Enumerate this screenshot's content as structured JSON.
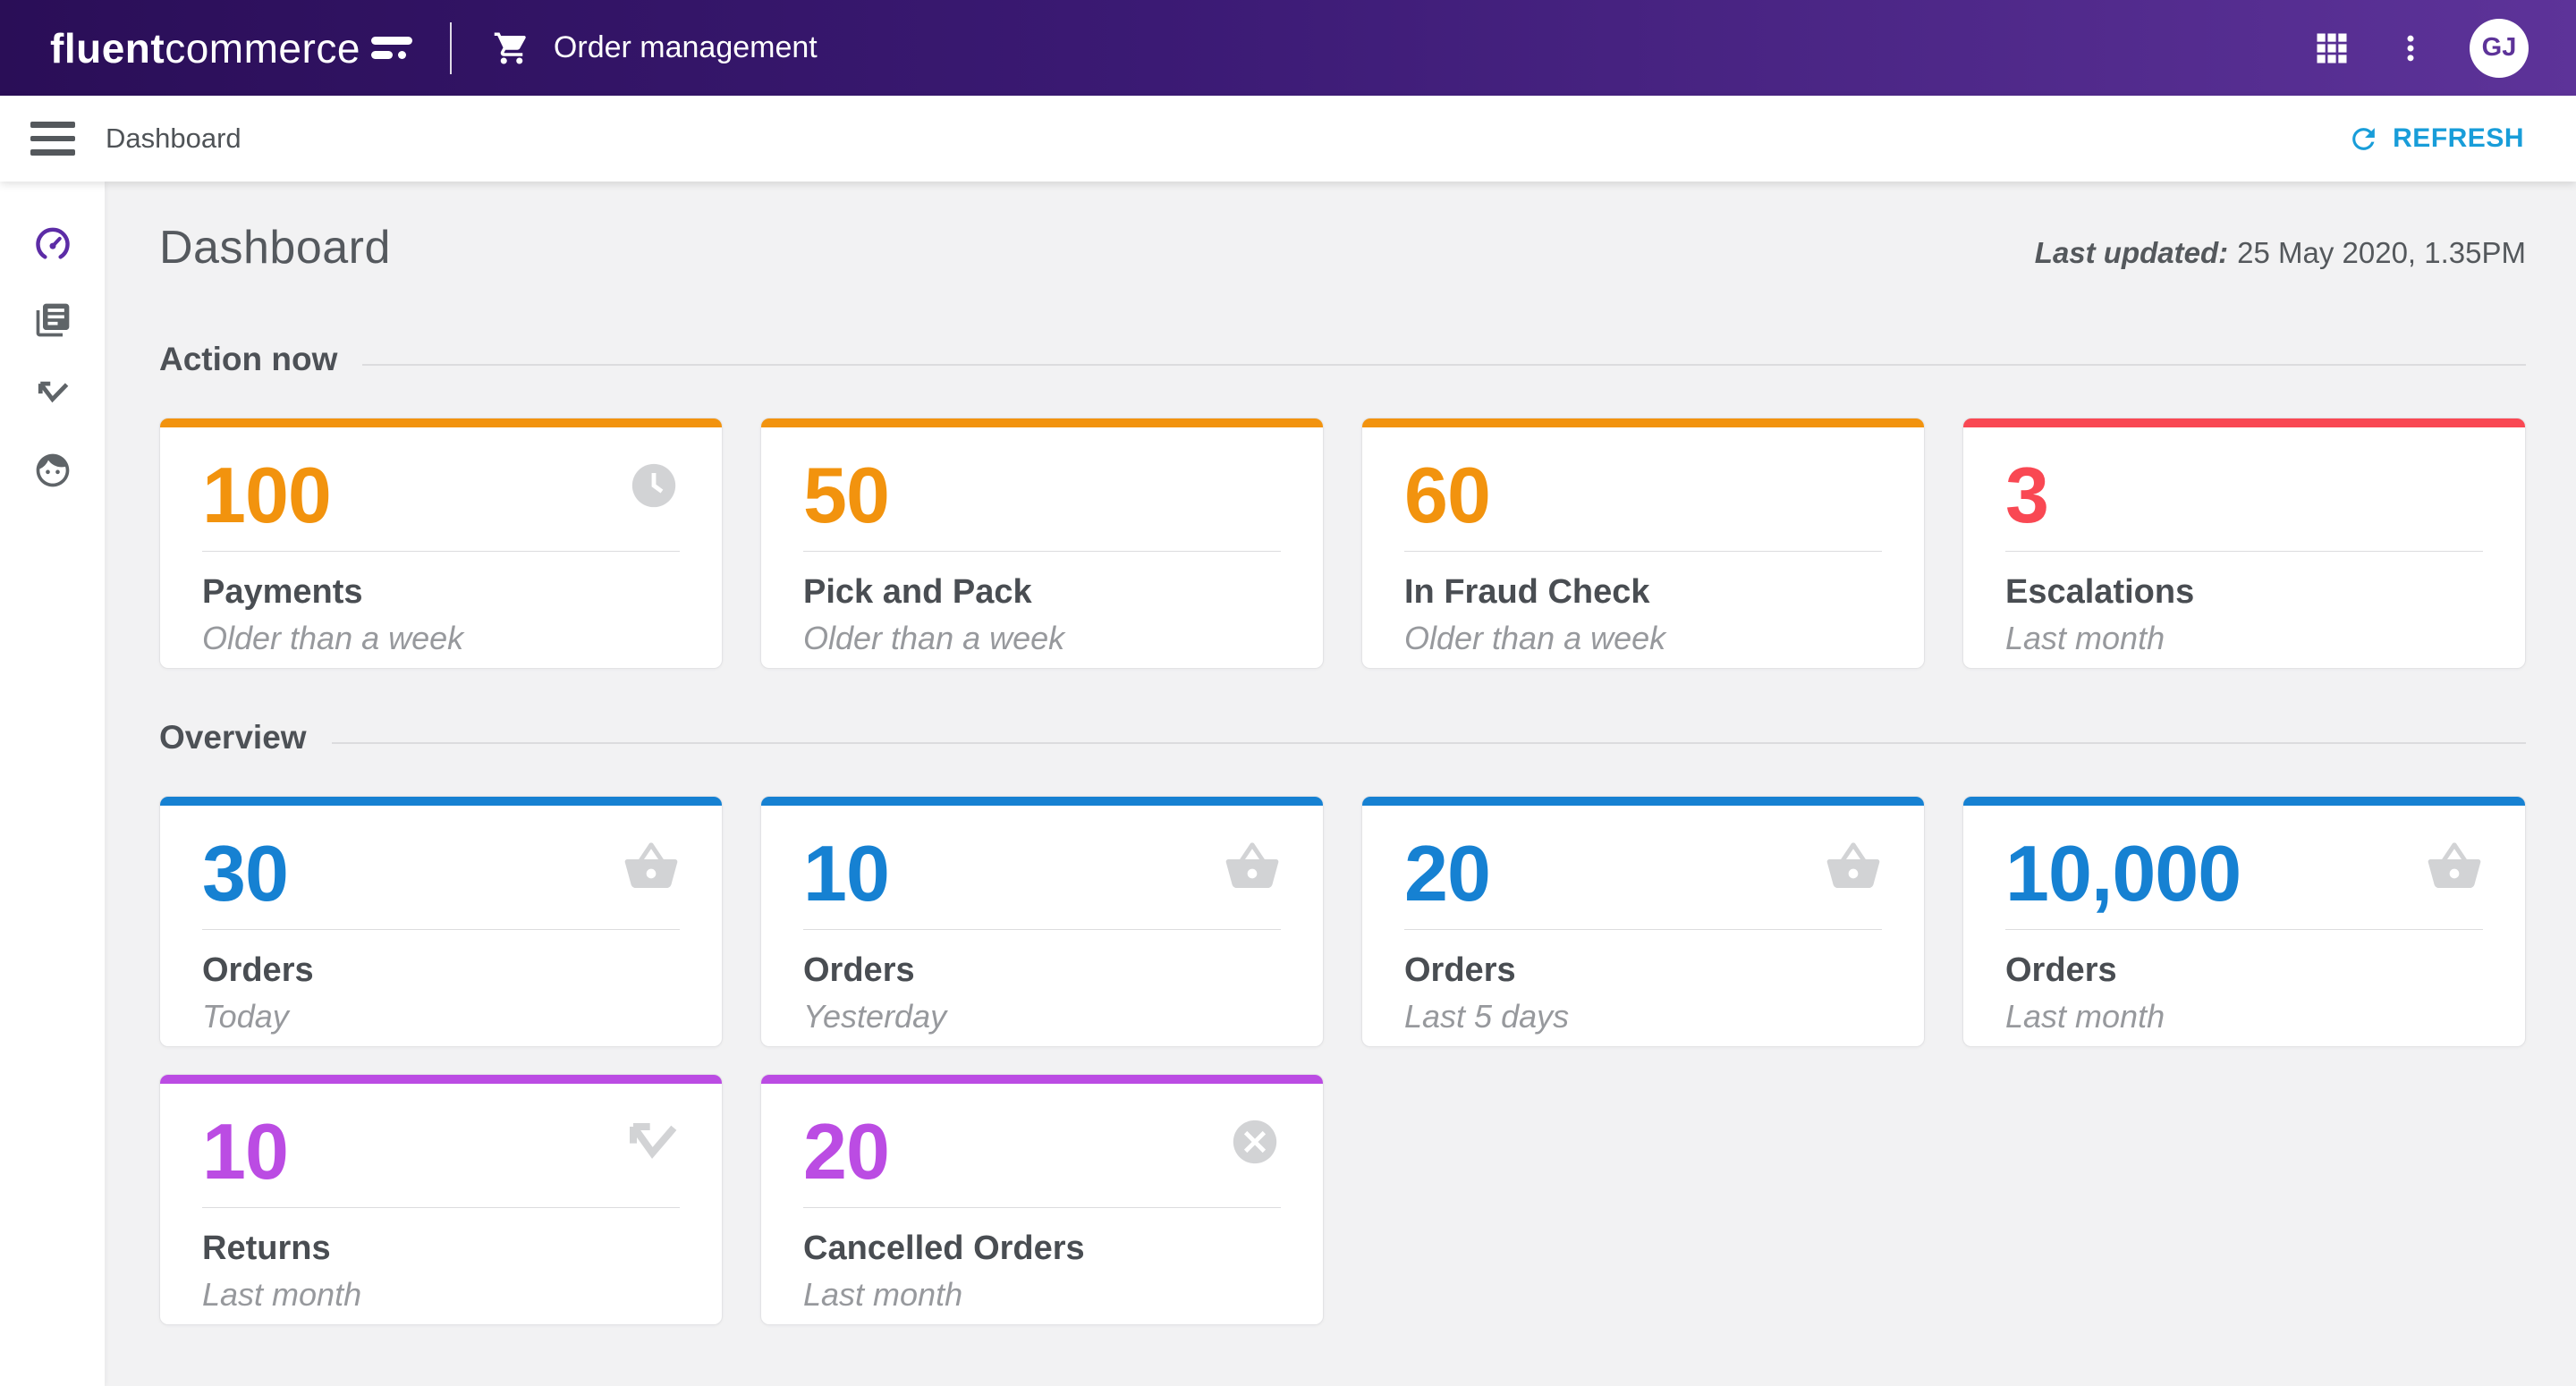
{
  "topbar": {
    "logo_bold": "fluent",
    "logo_light": "commerce",
    "app_label": "Order management",
    "avatar_initials": "GJ"
  },
  "toolbar": {
    "title": "Dashboard",
    "refresh_label": "REFRESH"
  },
  "sidebar": {
    "items": [
      {
        "icon": "dashboard-gauge",
        "active": true
      },
      {
        "icon": "orders-list",
        "active": false
      },
      {
        "icon": "returns-check",
        "active": false
      },
      {
        "icon": "customer-face",
        "active": false
      }
    ]
  },
  "page": {
    "title": "Dashboard",
    "last_updated_label": "Last updated:",
    "last_updated_value": "25 May 2020, 1.35PM"
  },
  "sections": [
    {
      "title": "Action now",
      "cards": [
        {
          "value": "100",
          "label": "Payments",
          "sublabel": "Older than a week",
          "accent": "#f2930e",
          "icon": "clock"
        },
        {
          "value": "50",
          "label": "Pick and Pack",
          "sublabel": "Older than a week",
          "accent": "#f2930e",
          "icon": null
        },
        {
          "value": "60",
          "label": "In Fraud Check",
          "sublabel": "Older than a week",
          "accent": "#f2930e",
          "icon": null
        },
        {
          "value": "3",
          "label": "Escalations",
          "sublabel": "Last month",
          "accent": "#f94853",
          "icon": null
        }
      ]
    },
    {
      "title": "Overview",
      "cards": [
        {
          "value": "30",
          "label": "Orders",
          "sublabel": "Today",
          "accent": "#1681d2",
          "icon": "basket"
        },
        {
          "value": "10",
          "label": "Orders",
          "sublabel": "Yesterday",
          "accent": "#1681d2",
          "icon": "basket"
        },
        {
          "value": "20",
          "label": "Orders",
          "sublabel": "Last 5 days",
          "accent": "#1681d2",
          "icon": "basket"
        },
        {
          "value": "10,000",
          "label": "Orders",
          "sublabel": "Last month",
          "accent": "#1681d2",
          "icon": "basket"
        },
        {
          "value": "10",
          "label": "Returns",
          "sublabel": "Last month",
          "accent": "#bb4ce3",
          "icon": "return-check"
        },
        {
          "value": "20",
          "label": "Cancelled Orders",
          "sublabel": "Last month",
          "accent": "#bb4ce3",
          "icon": "cancel"
        }
      ]
    }
  ],
  "colors": {
    "topbar_gradient_start": "#2a0e57",
    "topbar_gradient_end": "#5d3399",
    "refresh_accent": "#189dd9",
    "sidebar_active": "#5c2ca6",
    "sidebar_inactive": "#5f6468",
    "card_muted_icon": "#d2d3d5",
    "accent_orange": "#f2930e",
    "accent_red": "#f94853",
    "accent_blue": "#1681d2",
    "accent_purple": "#bb4ce3"
  }
}
